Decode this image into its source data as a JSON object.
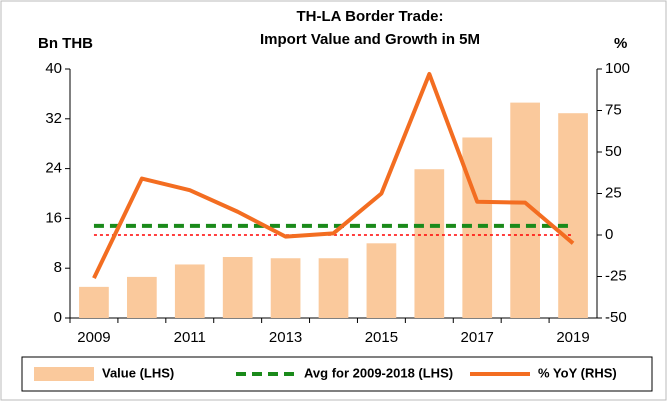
{
  "chart_data": {
    "type": "combo",
    "title": [
      "TH-LA Border Trade:",
      "Import Value and Growth in 5M"
    ],
    "y_label": "Bn THB",
    "y2_label": "%",
    "categories": [
      "2009",
      null,
      "2011",
      null,
      "2013",
      null,
      "2015",
      null,
      "2017",
      null,
      "2019"
    ],
    "series": [
      {
        "name": "Value (LHS)",
        "type": "bar",
        "color": "#fac99c",
        "axis": "y",
        "values": [
          5.0,
          6.6,
          8.6,
          9.8,
          9.6,
          9.6,
          12.0,
          23.9,
          29.0,
          34.6,
          32.9
        ]
      },
      {
        "name": "% YoY (RHS)",
        "type": "line",
        "color": "#f36d21",
        "axis": "y2",
        "values": [
          -26,
          34,
          27,
          14,
          -1,
          1,
          25,
          97,
          20,
          19.5,
          -5
        ]
      }
    ],
    "average": {
      "name": "Avg for 2009-2018 (LHS)",
      "value": 14.8,
      "color": "#1a8a1a",
      "axis": "y"
    },
    "reference_line": {
      "value": 0,
      "axis": "y2",
      "color": "#ff0000"
    },
    "ylim": [
      0,
      40
    ],
    "yticks": [
      0,
      8,
      16,
      24,
      32,
      40
    ],
    "y2lim": [
      -50,
      100
    ],
    "y2ticks": [
      -50,
      -25,
      0,
      25,
      50,
      75,
      100
    ],
    "grid": false,
    "legend": "bottom"
  }
}
